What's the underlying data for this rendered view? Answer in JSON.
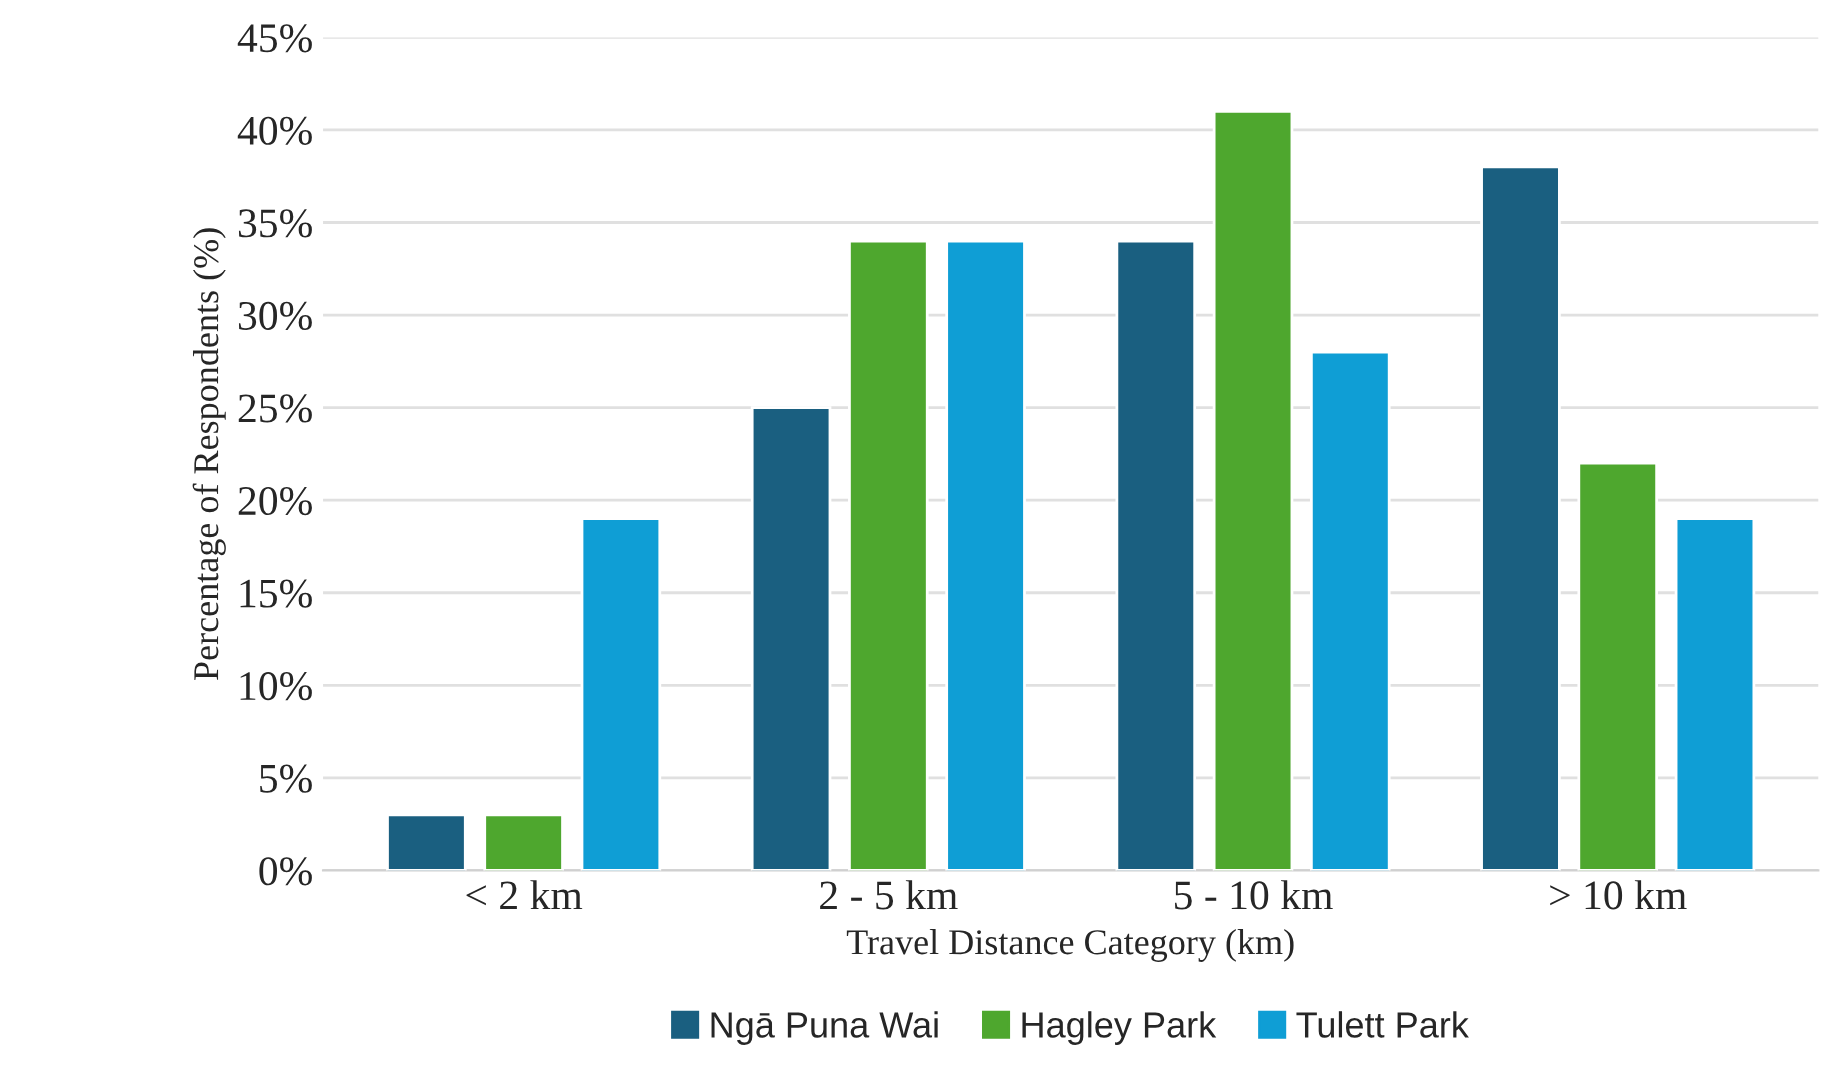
{
  "chart_data": {
    "type": "bar",
    "xlabel": "Travel Distance Category (km)",
    "ylabel": "Percentage of Respondents (%)",
    "categories": [
      "< 2 km",
      "2 - 5 km",
      "5 - 10 km",
      "> 10 km"
    ],
    "series": [
      {
        "name": "Ngā Puna Wai",
        "color": "#1a5f80",
        "values": [
          3,
          25,
          34,
          38
        ]
      },
      {
        "name": "Hagley Park",
        "color": "#4ea72e",
        "values": [
          3,
          34,
          41,
          22
        ]
      },
      {
        "name": "Tulett Park",
        "color": "#0f9ed5",
        "values": [
          19,
          34,
          28,
          19
        ]
      }
    ],
    "ylim": [
      0,
      45
    ],
    "yticks": [
      {
        "value": 0,
        "label": "0%"
      },
      {
        "value": 5,
        "label": "5%"
      },
      {
        "value": 10,
        "label": "10%"
      },
      {
        "value": 15,
        "label": "15%"
      },
      {
        "value": 20,
        "label": "20%"
      },
      {
        "value": 25,
        "label": "25%"
      },
      {
        "value": 30,
        "label": "30%"
      },
      {
        "value": 35,
        "label": "35%"
      },
      {
        "value": 40,
        "label": "40%"
      },
      {
        "value": 45,
        "label": "45%"
      }
    ],
    "grid": "y",
    "legend": "bottom"
  }
}
